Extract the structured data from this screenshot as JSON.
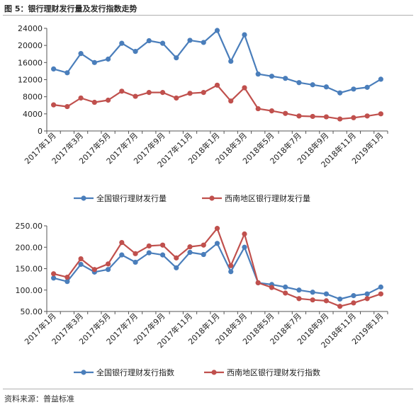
{
  "figure": {
    "title": "图 5：银行理财发行量及发行指数走势",
    "source": "资料来源：普益标准"
  },
  "chart_data": [
    {
      "type": "line",
      "categories": [
        "2017年1月",
        "2017年2月",
        "2017年3月",
        "2017年4月",
        "2017年5月",
        "2017年6月",
        "2017年7月",
        "2017年8月",
        "2017年9月",
        "2017年10月",
        "2017年11月",
        "2017年12月",
        "2018年1月",
        "2018年2月",
        "2018年3月",
        "2018年4月",
        "2018年5月",
        "2018年6月",
        "2018年7月",
        "2018年8月",
        "2018年9月",
        "2018年10月",
        "2018年11月",
        "2018年12月",
        "2019年1月"
      ],
      "x_tick_labels": [
        "2017年1月",
        "2017年3月",
        "2017年5月",
        "2017年7月",
        "2017年9月",
        "2017年11月",
        "2018年1月",
        "2018年3月",
        "2018年5月",
        "2018年7月",
        "2018年9月",
        "2018年11月",
        "2019年1月"
      ],
      "y_tick_labels": [
        "0",
        "4000",
        "8000",
        "12000",
        "16000",
        "20000",
        "24000"
      ],
      "ylim": [
        0,
        24000
      ],
      "grid": false,
      "legend": "bottom",
      "series": [
        {
          "name": "全国银行理财发行量",
          "color": "#4a7ebb",
          "values": [
            14500,
            13600,
            18100,
            16000,
            16800,
            20500,
            18600,
            21100,
            20500,
            17100,
            21200,
            20700,
            23500,
            16300,
            22500,
            13300,
            12800,
            12300,
            11300,
            10800,
            10300,
            8900,
            9800,
            10200,
            12100
          ]
        },
        {
          "name": "西南地区银行理财发行量",
          "color": "#c0504d",
          "values": [
            6100,
            5700,
            7700,
            6700,
            7200,
            9300,
            8100,
            9000,
            9000,
            7700,
            8800,
            9000,
            10700,
            7000,
            10100,
            5200,
            4700,
            4100,
            3500,
            3400,
            3300,
            2800,
            3100,
            3500,
            4000
          ]
        }
      ]
    },
    {
      "type": "line",
      "categories": [
        "2017年1月",
        "2017年2月",
        "2017年3月",
        "2017年4月",
        "2017年5月",
        "2017年6月",
        "2017年7月",
        "2017年8月",
        "2017年9月",
        "2017年10月",
        "2017年11月",
        "2017年12月",
        "2018年1月",
        "2018年2月",
        "2018年3月",
        "2018年4月",
        "2018年5月",
        "2018年6月",
        "2018年7月",
        "2018年8月",
        "2018年9月",
        "2018年10月",
        "2018年11月",
        "2018年12月",
        "2019年1月"
      ],
      "x_tick_labels": [
        "2017年1月",
        "2017年3月",
        "2017年5月",
        "2017年7月",
        "2017年9月",
        "2017年11月",
        "2018年1月",
        "2018年3月",
        "2018年5月",
        "2018年7月",
        "2018年9月",
        "2018年11月",
        "2019年1月"
      ],
      "y_tick_labels": [
        "50.00",
        "100.00",
        "150.00",
        "200.00",
        "250.00"
      ],
      "ylim": [
        50,
        250
      ],
      "grid": false,
      "legend": "bottom",
      "series": [
        {
          "name": "全国银行理财发行指数",
          "color": "#4a7ebb",
          "values": [
            128,
            120,
            160,
            142,
            148,
            182,
            165,
            187,
            182,
            152,
            188,
            183,
            209,
            143,
            200,
            117,
            113,
            107,
            100,
            95,
            91,
            79,
            87,
            91,
            107
          ]
        },
        {
          "name": "西南地区银行理财发行指数",
          "color": "#c0504d",
          "values": [
            138,
            130,
            173,
            148,
            161,
            211,
            185,
            203,
            205,
            175,
            201,
            205,
            244,
            157,
            231,
            117,
            106,
            93,
            80,
            77,
            75,
            62,
            70,
            80,
            91
          ]
        }
      ]
    }
  ]
}
